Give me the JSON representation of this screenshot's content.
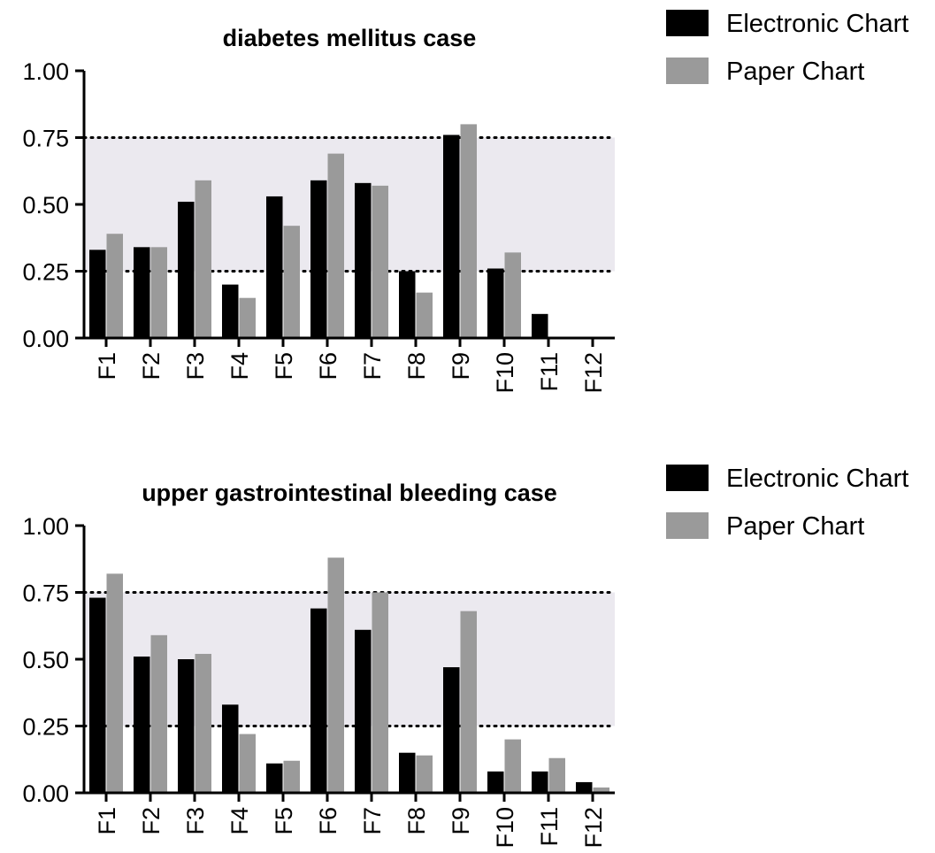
{
  "chart_data": [
    {
      "type": "bar",
      "title": "diabetes mellitus case",
      "xlabel": "",
      "ylabel": "",
      "ylim": [
        0,
        1
      ],
      "yticks": [
        "0.00",
        "0.25",
        "0.50",
        "0.75",
        "1.00"
      ],
      "reference_lines": [
        0.25,
        0.75
      ],
      "shaded_band": [
        0.25,
        0.75
      ],
      "categories": [
        "F1",
        "F2",
        "F3",
        "F4",
        "F5",
        "F6",
        "F7",
        "F8",
        "F9",
        "F10",
        "F11",
        "F12"
      ],
      "series": [
        {
          "name": "Electronic Chart",
          "color": "#000000",
          "values": [
            0.33,
            0.34,
            0.51,
            0.2,
            0.53,
            0.59,
            0.58,
            0.25,
            0.76,
            0.26,
            0.09,
            0.0
          ]
        },
        {
          "name": "Paper Chart",
          "color": "#9a9a9a",
          "values": [
            0.39,
            0.34,
            0.59,
            0.15,
            0.42,
            0.69,
            0.57,
            0.17,
            0.8,
            0.32,
            0.0,
            0.0
          ]
        }
      ],
      "legend": "top-right"
    },
    {
      "type": "bar",
      "title": "upper gastrointestinal bleeding case",
      "xlabel": "",
      "ylabel": "",
      "ylim": [
        0,
        1
      ],
      "yticks": [
        "0.00",
        "0.25",
        "0.50",
        "0.75",
        "1.00"
      ],
      "reference_lines": [
        0.25,
        0.75
      ],
      "shaded_band": [
        0.25,
        0.75
      ],
      "categories": [
        "F1",
        "F2",
        "F3",
        "F4",
        "F5",
        "F6",
        "F7",
        "F8",
        "F9",
        "F10",
        "F11",
        "F12"
      ],
      "series": [
        {
          "name": "Electronic Chart",
          "color": "#000000",
          "values": [
            0.73,
            0.51,
            0.5,
            0.33,
            0.11,
            0.69,
            0.61,
            0.15,
            0.47,
            0.08,
            0.08,
            0.04
          ]
        },
        {
          "name": "Paper Chart",
          "color": "#9a9a9a",
          "values": [
            0.82,
            0.59,
            0.52,
            0.22,
            0.12,
            0.88,
            0.75,
            0.14,
            0.68,
            0.2,
            0.13,
            0.02
          ]
        }
      ],
      "legend": "top-right"
    }
  ]
}
